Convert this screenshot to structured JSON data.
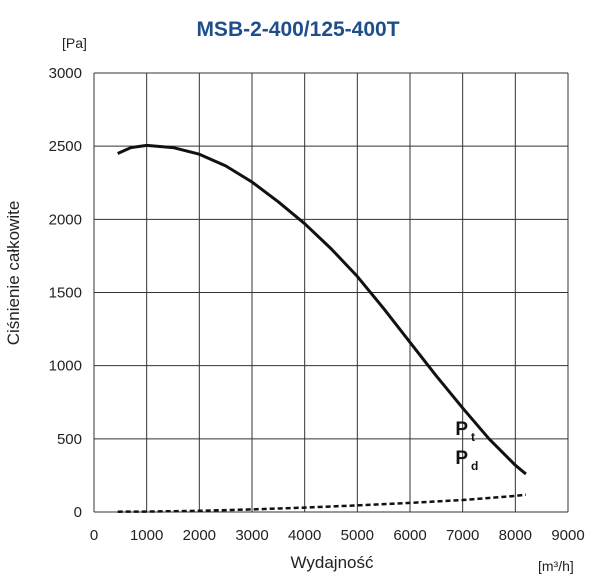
{
  "chart_data": {
    "type": "line",
    "title": "MSB-2-400/125-400T",
    "xlabel": "Wydajność",
    "ylabel": "Ciśnienie całkowite",
    "x_unit": "[m³/h]",
    "y_unit": "[Pa]",
    "xlim": [
      0,
      9000
    ],
    "ylim": [
      0,
      3000
    ],
    "x_ticks": [
      "0",
      "1000",
      "2000",
      "3000",
      "4000",
      "5000",
      "6000",
      "7000",
      "8000",
      "9000"
    ],
    "y_ticks": [
      "0",
      "500",
      "1000",
      "1500",
      "2000",
      "2500",
      "3000"
    ],
    "grid": true,
    "series": [
      {
        "label_main": "P",
        "label_sub": "t",
        "style": "solid",
        "color": "#111111",
        "x": [
          450,
          700,
          1000,
          1500,
          2000,
          2500,
          3000,
          3500,
          4000,
          4500,
          5000,
          5500,
          6000,
          6500,
          7000,
          7500,
          8000,
          8200
        ],
        "y": [
          2450,
          2490,
          2505,
          2490,
          2445,
          2365,
          2255,
          2120,
          1970,
          1800,
          1610,
          1390,
          1160,
          930,
          710,
          500,
          320,
          260
        ]
      },
      {
        "label_main": "P",
        "label_sub": "d",
        "style": "dashed",
        "color": "#111111",
        "x": [
          450,
          1000,
          2000,
          3000,
          4000,
          5000,
          6000,
          7000,
          8000,
          8200
        ],
        "y": [
          2,
          3,
          8,
          18,
          30,
          45,
          62,
          82,
          110,
          118
        ]
      }
    ]
  }
}
